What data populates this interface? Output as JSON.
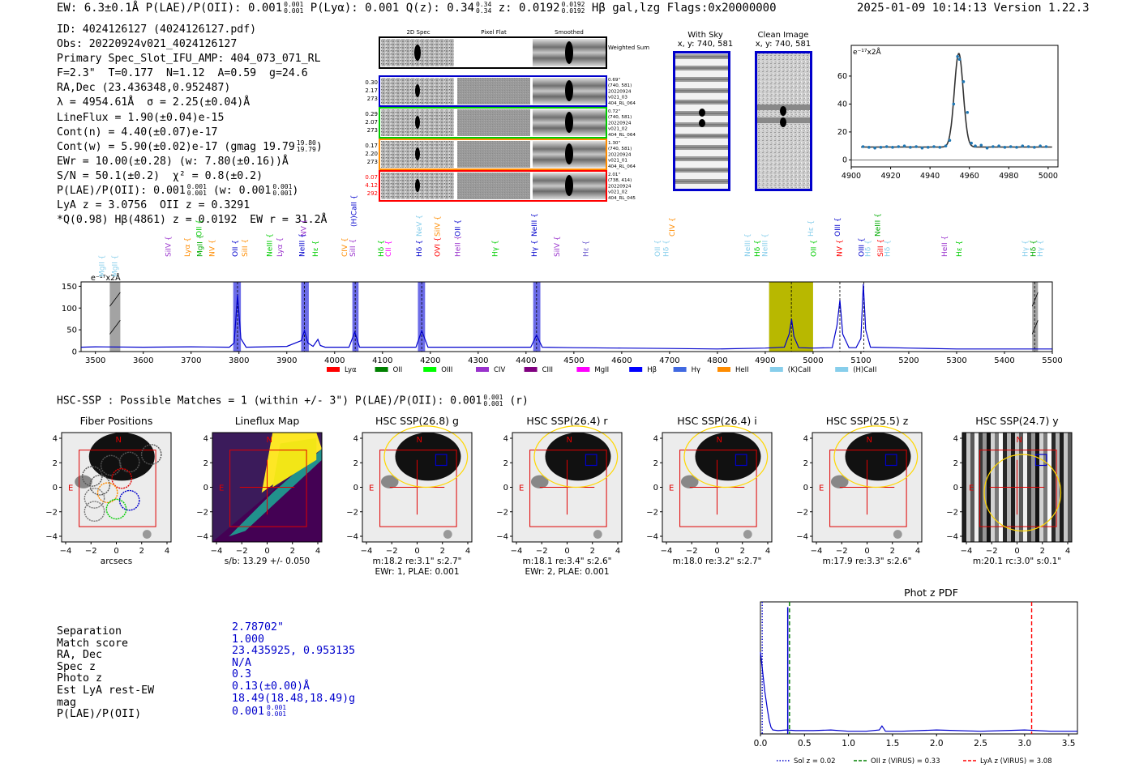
{
  "header": {
    "ew": "EW: 6.3±0.1Å",
    "plae_label": "P(LAE)/P(OII): 0.001",
    "plae_hi": "0.001",
    "plae_lo": "0.001",
    "plya": "P(Lyα): 0.001",
    "qz_label": "Q(z): 0.34",
    "qz_hi": "0.34",
    "qz_lo": "0.34",
    "z_label": "z: 0.0192",
    "z_hi": "0.0192",
    "z_lo": "0.0192",
    "line": "Hβ",
    "tags": "gal,lzg",
    "flags": "Flags:0x20000000",
    "datetime": "2025-01-09 10:14:13",
    "version": "Version 1.22.3"
  },
  "info": {
    "id": "ID: 4024126127 (4024126127.pdf)",
    "obs": "Obs: 20220924v021_4024126127",
    "primary": "Primary Spec_Slot_IFU_AMP: 404_073_071_RL",
    "fit": "F=2.3\"  T=0.177  N=1.12  A=0.59  g=24.6",
    "radec": "RA,Dec (23.436348,0.952487)",
    "lambda": "λ = 4954.61Å  σ = 2.25(±0.04)Å",
    "lineflux": "LineFlux = 1.90(±0.04)e-15",
    "contn": "Cont(n) = 4.40(±0.07)e-17",
    "contw": "Cont(w) = 5.90(±0.02)e-17 (gmag 19.79",
    "contw_hi": "19.80",
    "contw_lo": "19.79",
    "ewr": "EWr = 10.00(±0.28) (w: 7.80(±0.16))Å",
    "sn": "S/N = 50.1(±0.2)  χ² = 0.8(±0.2)",
    "plae": "P(LAE)/P(OII): 0.001",
    "plae_hi": "0.001",
    "plae_lo": "0.001",
    "plae_w": "(w: 0.001",
    "plae_w_hi": "0.001",
    "plae_w_lo": "0.001",
    "lya": "LyA z = 3.0756  OII z = 0.3291",
    "q": "*Q(0.98) Hβ(4861) z = 0.0192  EW r = 31.2Å"
  },
  "spec_cutouts": {
    "col_headers": [
      "2D Spec",
      "Pixel Flat",
      "Smoothed"
    ],
    "weighted_sum": "Weighted Sum",
    "rows": [
      {
        "left": [
          "0.30",
          "2.17",
          "273"
        ],
        "right": [
          "0.69\"",
          "(740, 581)",
          "20220924",
          "v021_03",
          "404_RL_064"
        ],
        "color": "#0000cc",
        "lcolor": "#000000"
      },
      {
        "left": [
          "0.29",
          "2.07",
          "273"
        ],
        "right": [
          "0.72\"",
          "(740, 581)",
          "20220924",
          "v021_02",
          "404_RL_064"
        ],
        "color": "#00cc00",
        "lcolor": "#000000"
      },
      {
        "left": [
          "0.17",
          "2.20",
          "273"
        ],
        "right": [
          "1.30\"",
          "(740, 581)",
          "20220924",
          "v021_01",
          "404_RL_064"
        ],
        "color": "#ff8c00",
        "lcolor": "#000000"
      },
      {
        "left": [
          "0.07",
          "4.12",
          "292"
        ],
        "right": [
          "2.01\"",
          "(738, 414)",
          "20220924",
          "v021_02",
          "404_RL_045"
        ],
        "color": "#ff0000",
        "lcolor": "#ff0000"
      }
    ]
  },
  "sky_panels": {
    "with_sky": "With Sky",
    "with_sky_xy": "x, y: 740, 581",
    "clean": "Clean Image",
    "clean_xy": "x, y: 740, 581"
  },
  "zoom_plot": {
    "unit_label": "e⁻¹⁷x2Å",
    "xlim": [
      4900,
      5005
    ],
    "ylim": [
      -5,
      82
    ],
    "xticks": [
      4900,
      4920,
      4940,
      4960,
      4980,
      5000
    ],
    "yticks": [
      0,
      20,
      40,
      60
    ],
    "points": [
      [
        4906,
        9.5
      ],
      [
        4909,
        9.0
      ],
      [
        4912,
        8.5
      ],
      [
        4915,
        9.0
      ],
      [
        4918,
        9.5
      ],
      [
        4921,
        9.0
      ],
      [
        4924,
        9.5
      ],
      [
        4927,
        10.0
      ],
      [
        4930,
        9.0
      ],
      [
        4933,
        9.5
      ],
      [
        4936,
        8.5
      ],
      [
        4939,
        9.0
      ],
      [
        4942,
        9.5
      ],
      [
        4945,
        9.0
      ],
      [
        4948,
        10.0
      ],
      [
        4950,
        14
      ],
      [
        4952,
        40
      ],
      [
        4954,
        74
      ],
      [
        4955,
        72
      ],
      [
        4957,
        56
      ],
      [
        4959,
        34
      ],
      [
        4961,
        12
      ],
      [
        4963,
        10
      ],
      [
        4966,
        10.5
      ],
      [
        4969,
        8.5
      ],
      [
        4972,
        9.5
      ],
      [
        4975,
        10
      ],
      [
        4978,
        9
      ],
      [
        4981,
        9.5
      ],
      [
        4984,
        9
      ],
      [
        4987,
        10
      ],
      [
        4990,
        9.5
      ],
      [
        4993,
        9
      ],
      [
        4996,
        10
      ],
      [
        4999,
        9.5
      ]
    ],
    "fit_center": 4954.61,
    "fit_sigma": 2.25,
    "fit_amp": 67,
    "fit_base": 9.2
  },
  "chart_data": [
    {
      "type": "line",
      "title": "",
      "unit_label": "e⁻¹⁷x2Å",
      "xlim": [
        3470,
        5500
      ],
      "ylim": [
        0,
        160
      ],
      "xticks": [
        3500,
        3600,
        3700,
        3800,
        3900,
        4000,
        4100,
        4200,
        4300,
        4400,
        4500,
        4600,
        4700,
        4800,
        4900,
        5000,
        5100,
        5200,
        5300,
        5400,
        5500
      ],
      "yticks": [
        0,
        50,
        100,
        150
      ],
      "series": [
        {
          "name": "flux",
          "x": [
            3470,
            3500,
            3600,
            3700,
            3780,
            3790,
            3797,
            3804,
            3815,
            3900,
            3930,
            3937,
            3944,
            3955,
            3965,
            3970,
            3980,
            4030,
            4042,
            4052,
            4100,
            4170,
            4182,
            4195,
            4300,
            4410,
            4422,
            4434,
            4500,
            4600,
            4700,
            4800,
            4900,
            4940,
            4950,
            4955,
            4960,
            4970,
            5000,
            5040,
            5050,
            5056,
            5062,
            5075,
            5090,
            5100,
            5105,
            5110,
            5120,
            5200,
            5300,
            5400,
            5500
          ],
          "y": [
            10,
            11,
            10,
            11,
            10,
            20,
            130,
            30,
            10,
            12,
            25,
            48,
            20,
            12,
            28,
            14,
            10,
            10,
            45,
            10,
            10,
            10,
            48,
            10,
            10,
            10,
            38,
            10,
            9,
            8,
            7,
            6,
            8,
            10,
            40,
            75,
            35,
            9,
            8,
            9,
            60,
            118,
            40,
            9,
            9,
            30,
            155,
            50,
            10,
            8,
            6,
            6,
            6
          ]
        }
      ],
      "shaded_regions": [
        {
          "x0": 3788,
          "x1": 3804,
          "color": "#6c6ce8"
        },
        {
          "x0": 3930,
          "x1": 3946,
          "color": "#6c6ce8"
        },
        {
          "x0": 4037,
          "x1": 4050,
          "color": "#6c6ce8"
        },
        {
          "x0": 4174,
          "x1": 4189,
          "color": "#6c6ce8"
        },
        {
          "x0": 4415,
          "x1": 4430,
          "color": "#6c6ce8"
        },
        {
          "x0": 4908,
          "x1": 5000,
          "color": "#b8b800"
        },
        {
          "x0": 3530,
          "x1": 3552,
          "color": "#999999"
        },
        {
          "x0": 5458,
          "x1": 5470,
          "color": "#999999"
        }
      ],
      "dashed_markers": [
        3797,
        3937,
        4043,
        4182,
        4422,
        4954.6,
        5056,
        5106,
        5463
      ],
      "line_labels": [
        {
          "text": "MgII",
          "x": 3518,
          "row": 0,
          "color": "#87ceeb"
        },
        {
          "text": "MgII",
          "x": 3545,
          "row": 0,
          "color": "#87ceeb"
        },
        {
          "text": "SiIV",
          "x": 3657,
          "row": 1,
          "color": "#9932cc"
        },
        {
          "text": "Lyα",
          "x": 3697,
          "row": 1,
          "color": "#ff8c00"
        },
        {
          "text": "OII",
          "x": 3722,
          "row": 2,
          "color": "#00cc00"
        },
        {
          "text": "MgII",
          "x": 3723,
          "row": 1,
          "color": "#00aa00"
        },
        {
          "text": "NV",
          "x": 3749,
          "row": 1,
          "color": "#ff8c00"
        },
        {
          "text": "OII",
          "x": 3797,
          "row": 1,
          "color": "#0000cc"
        },
        {
          "text": "SiII",
          "x": 3817,
          "row": 1,
          "color": "#ff8c00"
        },
        {
          "text": "NeIII",
          "x": 3869,
          "row": 1,
          "color": "#00cc00"
        },
        {
          "text": "Lyα",
          "x": 3890,
          "row": 1,
          "color": "#9932cc"
        },
        {
          "text": "NV",
          "x": 3940,
          "row": 2,
          "color": "#9932cc"
        },
        {
          "text": "NeIII",
          "x": 3937,
          "row": 1,
          "color": "#0000cc"
        },
        {
          "text": "Hε",
          "x": 3965,
          "row": 1,
          "color": "#00cc00"
        },
        {
          "text": "CIV",
          "x": 4026,
          "row": 1,
          "color": "#ff8c00"
        },
        {
          "text": "SiII",
          "x": 4043,
          "row": 1,
          "color": "#9932cc"
        },
        {
          "text": "(H)CaII",
          "x": 4045,
          "row": 3,
          "color": "#0000cc"
        },
        {
          "text": "Hδ",
          "x": 4102,
          "row": 1,
          "color": "#00cc00"
        },
        {
          "text": "CII",
          "x": 4117,
          "row": 1,
          "color": "#ff00ff"
        },
        {
          "text": "Hδ",
          "x": 4182,
          "row": 1,
          "color": "#0000cc"
        },
        {
          "text": "NeV",
          "x": 4182,
          "row": 2,
          "color": "#87ceeb"
        },
        {
          "text": "SiIV",
          "x": 4220,
          "row": 2,
          "color": "#ff8c00"
        },
        {
          "text": "OVI",
          "x": 4220,
          "row": 1,
          "color": "#ff0000"
        },
        {
          "text": "OII",
          "x": 4262,
          "row": 2,
          "color": "#0000cc"
        },
        {
          "text": "HeII",
          "x": 4262,
          "row": 1,
          "color": "#9932cc"
        },
        {
          "text": "Hγ",
          "x": 4340,
          "row": 1,
          "color": "#00cc00"
        },
        {
          "text": "NeIII",
          "x": 4422,
          "row": 2,
          "color": "#0000cc"
        },
        {
          "text": "Hγ",
          "x": 4422,
          "row": 1,
          "color": "#0000cc"
        },
        {
          "text": "SiIV",
          "x": 4470,
          "row": 1,
          "color": "#9932cc"
        },
        {
          "text": "Hε",
          "x": 4530,
          "row": 1,
          "color": "#6a5acd"
        },
        {
          "text": "OII",
          "x": 4680,
          "row": 1,
          "color": "#87ceeb"
        },
        {
          "text": "Hδ",
          "x": 4698,
          "row": 1,
          "color": "#87ceeb"
        },
        {
          "text": "CIV",
          "x": 4710,
          "row": 2,
          "color": "#ff8c00"
        },
        {
          "text": "NeIII",
          "x": 4868,
          "row": 1,
          "color": "#87ceeb"
        },
        {
          "text": "Hδ",
          "x": 4888,
          "row": 1,
          "color": "#00cc00"
        },
        {
          "text": "NeIII",
          "x": 4904,
          "row": 1,
          "color": "#87ceeb"
        },
        {
          "text": "Hε",
          "x": 5000,
          "row": 2,
          "color": "#87ceeb"
        },
        {
          "text": "OII",
          "x": 5006,
          "row": 1,
          "color": "#00cc00"
        },
        {
          "text": "NV",
          "x": 5060,
          "row": 1,
          "color": "#ff0000"
        },
        {
          "text": "OIII",
          "x": 5056,
          "row": 2,
          "color": "#0000cc"
        },
        {
          "text": "OIII",
          "x": 5106,
          "row": 1,
          "color": "#0000cc"
        },
        {
          "text": "Hδ",
          "x": 5120,
          "row": 1,
          "color": "#87ceeb"
        },
        {
          "text": "NeIII",
          "x": 5140,
          "row": 2,
          "color": "#00aa00"
        },
        {
          "text": "Hδ",
          "x": 5160,
          "row": 1,
          "color": "#87ceeb"
        },
        {
          "text": "SiII",
          "x": 5146,
          "row": 1,
          "color": "#ff0000"
        },
        {
          "text": "HeII",
          "x": 5280,
          "row": 1,
          "color": "#9932cc"
        },
        {
          "text": "Hε",
          "x": 5310,
          "row": 1,
          "color": "#00cc00"
        },
        {
          "text": "Hγ",
          "x": 5448,
          "row": 1,
          "color": "#87ceeb"
        },
        {
          "text": "Hδ",
          "x": 5465,
          "row": 1,
          "color": "#00aa00"
        },
        {
          "text": "Hγ",
          "x": 5480,
          "row": 1,
          "color": "#87ceeb"
        }
      ],
      "legend": [
        {
          "name": "Lyα",
          "color": "#ff0000"
        },
        {
          "name": "OII",
          "color": "#008000"
        },
        {
          "name": "OIII",
          "color": "#00ff00"
        },
        {
          "name": "CIV",
          "color": "#9932cc"
        },
        {
          "name": "CIII",
          "color": "#800080"
        },
        {
          "name": "MgII",
          "color": "#ff00ff"
        },
        {
          "name": "Hβ",
          "color": "#0000ff"
        },
        {
          "name": "Hγ",
          "color": "#4169e1"
        },
        {
          "name": "HeII",
          "color": "#ff8c00"
        },
        {
          "name": "(K)CaII",
          "color": "#87ceeb"
        },
        {
          "name": "(H)CaII",
          "color": "#87ceeb"
        }
      ]
    },
    {
      "type": "line",
      "title": "Phot z PDF",
      "xlim": [
        0.0,
        3.6
      ],
      "ylim": [
        0,
        1
      ],
      "xticks": [
        0.0,
        0.5,
        1.0,
        1.5,
        2.0,
        2.5,
        3.0,
        3.5
      ],
      "series": [
        {
          "name": "pdf",
          "x": [
            0.0,
            0.02,
            0.05,
            0.08,
            0.1,
            0.12,
            0.14,
            0.2,
            0.3,
            0.4,
            0.6,
            0.8,
            1.0,
            1.2,
            1.35,
            1.38,
            1.42,
            1.6,
            2.0,
            2.5,
            3.0,
            3.3,
            3.6
          ],
          "y": [
            0.62,
            0.5,
            0.32,
            0.18,
            0.1,
            0.05,
            0.03,
            0.025,
            0.03,
            0.025,
            0.025,
            0.03,
            0.02,
            0.02,
            0.03,
            0.06,
            0.02,
            0.02,
            0.03,
            0.02,
            0.03,
            0.02,
            0.02
          ]
        }
      ],
      "vlines": [
        {
          "x": 0.02,
          "color": "#0000cc",
          "style": "dotted",
          "label": "Sol z = 0.02"
        },
        {
          "x": 0.33,
          "color": "#008000",
          "style": "dashed",
          "label": "OII z (VIRUS) = 0.33"
        },
        {
          "x": 3.08,
          "color": "#ff0000",
          "style": "dashed",
          "label": "LyA z (VIRUS) = 3.08"
        }
      ],
      "spike": {
        "x": 0.31,
        "y": 0.96
      }
    }
  ],
  "spectrum_unit_label": "e⁻¹⁷x2Å",
  "hsc_line": {
    "text": "HSC-SSP : Possible Matches = 1 (within +/- 3\")  P(LAE)/P(OII): 0.001",
    "hi": "0.001",
    "lo": "0.001",
    "suffix": "(r)"
  },
  "panels": [
    {
      "title": "Fiber Positions",
      "cap1": "arcsecs",
      "cap2": ""
    },
    {
      "title": "Lineflux Map",
      "cap1": "s/b: 13.29 +/- 0.050",
      "cap2": ""
    },
    {
      "title": "HSC SSP(26.8) g",
      "cap1": "m:18.2  re:3.1\"  s:2.7\"",
      "cap2": "EWr: 1, PLAE: 0.001"
    },
    {
      "title": "HSC SSP(26.4) r",
      "cap1": "m:18.1  re:3.4\"  s:2.6\"",
      "cap2": "EWr: 2, PLAE: 0.001"
    },
    {
      "title": "HSC SSP(26.4) i",
      "cap1": "m:18.0  re:3.2\"  s:2.7\"",
      "cap2": ""
    },
    {
      "title": "HSC SSP(25.5) z",
      "cap1": "m:17.9  re:3.3\"  s:2.6\"",
      "cap2": ""
    },
    {
      "title": "HSC SSP(24.7) y",
      "cap1": "m:20.1  rc:3.0\"  s:0.1\"",
      "cap2": ""
    }
  ],
  "panel_ticks": [
    "−4",
    "−2",
    "0",
    "2",
    "4"
  ],
  "panel_yticks": [
    "4",
    "2",
    "0",
    "−2",
    "−4"
  ],
  "compass": {
    "n": "N",
    "e": "E"
  },
  "match": {
    "labels": [
      "Separation",
      "Match score",
      "RA, Dec",
      "Spec z",
      "Photo z",
      "Est LyA rest-EW",
      "mag",
      "P(LAE)/P(OII)"
    ],
    "values": [
      "2.78702\"",
      "1.000",
      "23.435925, 0.953135",
      "N/A",
      "0.3",
      "0.13(±0.00)Å",
      "18.49(18.48,18.49)g",
      "0.001"
    ],
    "plae_hi": "0.001",
    "plae_lo": "0.001"
  },
  "colors": {
    "spectrum": "#0000cc",
    "fit": "#333333",
    "points": "#1f77b4",
    "yellow": "#b8b800"
  }
}
